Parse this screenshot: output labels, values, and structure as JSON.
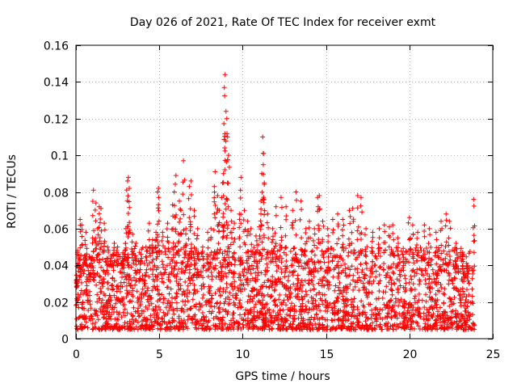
{
  "chart_data": {
    "type": "scatter",
    "title": "Day 026 of 2021, Rate Of TEC Index for receiver exmt",
    "xlabel": "GPS time / hours",
    "ylabel": "ROTI / TECUs",
    "xlim": [
      0,
      25
    ],
    "ylim": [
      0,
      0.16
    ],
    "xticks": [
      0,
      5,
      10,
      15,
      20,
      25
    ],
    "xtick_labels": [
      "0",
      "5",
      "10",
      "15",
      "20",
      "25"
    ],
    "yticks": [
      0,
      0.02,
      0.04,
      0.06,
      0.08,
      0.1,
      0.12,
      0.14,
      0.16
    ],
    "ytick_labels": [
      "0",
      "0.02",
      "0.04",
      "0.06",
      "0.08",
      "0.1",
      "0.12",
      "0.14",
      "0.16"
    ],
    "grid": true,
    "marker": "+",
    "color": "#ff0000",
    "data_extent": {
      "x_min": 0.0,
      "x_max": 23.9,
      "typical_y_min": 0.005,
      "typical_y_max": 0.05
    },
    "series": [
      {
        "name": "ROTI",
        "points": [
          [
            0.05,
            0.03
          ],
          [
            0.1,
            0.048
          ],
          [
            0.2,
            0.04
          ],
          [
            0.25,
            0.065
          ],
          [
            0.35,
            0.062
          ],
          [
            0.5,
            0.045
          ],
          [
            0.6,
            0.058
          ],
          [
            0.8,
            0.035
          ],
          [
            1.0,
            0.055
          ],
          [
            1.05,
            0.081
          ],
          [
            1.2,
            0.074
          ],
          [
            1.3,
            0.06
          ],
          [
            1.4,
            0.072
          ],
          [
            1.5,
            0.071
          ],
          [
            1.7,
            0.063
          ],
          [
            1.9,
            0.05
          ],
          [
            2.1,
            0.045
          ],
          [
            2.3,
            0.052
          ],
          [
            2.5,
            0.05
          ],
          [
            2.8,
            0.044
          ],
          [
            3.0,
            0.06
          ],
          [
            3.1,
            0.086
          ],
          [
            3.15,
            0.088
          ],
          [
            3.2,
            0.082
          ],
          [
            3.4,
            0.057
          ],
          [
            3.6,
            0.052
          ],
          [
            3.9,
            0.046
          ],
          [
            4.2,
            0.05
          ],
          [
            4.4,
            0.063
          ],
          [
            4.6,
            0.054
          ],
          [
            4.8,
            0.058
          ],
          [
            4.9,
            0.08
          ],
          [
            4.95,
            0.082
          ],
          [
            5.2,
            0.058
          ],
          [
            5.5,
            0.063
          ],
          [
            5.8,
            0.073
          ],
          [
            5.9,
            0.08
          ],
          [
            6.0,
            0.089
          ],
          [
            6.2,
            0.075
          ],
          [
            6.3,
            0.07
          ],
          [
            6.45,
            0.097
          ],
          [
            6.6,
            0.06
          ],
          [
            6.8,
            0.083
          ],
          [
            6.9,
            0.086
          ],
          [
            7.1,
            0.07
          ],
          [
            7.3,
            0.06
          ],
          [
            7.6,
            0.05
          ],
          [
            7.9,
            0.058
          ],
          [
            8.1,
            0.06
          ],
          [
            8.3,
            0.083
          ],
          [
            8.35,
            0.091
          ],
          [
            8.5,
            0.078
          ],
          [
            8.6,
            0.07
          ],
          [
            8.8,
            0.085
          ],
          [
            8.85,
            0.09
          ],
          [
            8.9,
            0.137
          ],
          [
            8.95,
            0.144
          ],
          [
            9.0,
            0.124
          ],
          [
            9.05,
            0.12
          ],
          [
            9.1,
            0.11
          ],
          [
            9.15,
            0.1
          ],
          [
            9.3,
            0.07
          ],
          [
            9.5,
            0.063
          ],
          [
            9.8,
            0.068
          ],
          [
            9.9,
            0.088
          ],
          [
            10.1,
            0.07
          ],
          [
            10.3,
            0.064
          ],
          [
            10.5,
            0.06
          ],
          [
            10.8,
            0.056
          ],
          [
            11.0,
            0.061
          ],
          [
            11.1,
            0.075
          ],
          [
            11.15,
            0.09
          ],
          [
            11.2,
            0.11
          ],
          [
            11.25,
            0.101
          ],
          [
            11.3,
            0.085
          ],
          [
            11.5,
            0.068
          ],
          [
            11.8,
            0.06
          ],
          [
            12.0,
            0.072
          ],
          [
            12.3,
            0.077
          ],
          [
            12.6,
            0.072
          ],
          [
            13.0,
            0.07
          ],
          [
            13.2,
            0.08
          ],
          [
            13.5,
            0.075
          ],
          [
            13.8,
            0.06
          ],
          [
            14.0,
            0.064
          ],
          [
            14.3,
            0.06
          ],
          [
            14.5,
            0.077
          ],
          [
            14.6,
            0.078
          ],
          [
            14.8,
            0.064
          ],
          [
            15.1,
            0.06
          ],
          [
            15.4,
            0.065
          ],
          [
            15.7,
            0.068
          ],
          [
            16.0,
            0.065
          ],
          [
            16.4,
            0.07
          ],
          [
            16.6,
            0.071
          ],
          [
            16.9,
            0.078
          ],
          [
            17.1,
            0.077
          ],
          [
            17.4,
            0.06
          ],
          [
            17.8,
            0.058
          ],
          [
            18.2,
            0.06
          ],
          [
            18.5,
            0.062
          ],
          [
            18.8,
            0.061
          ],
          [
            19.0,
            0.062
          ],
          [
            19.3,
            0.055
          ],
          [
            19.6,
            0.046
          ],
          [
            20.0,
            0.066
          ],
          [
            20.2,
            0.062
          ],
          [
            20.5,
            0.058
          ],
          [
            20.9,
            0.062
          ],
          [
            21.2,
            0.06
          ],
          [
            21.6,
            0.058
          ],
          [
            21.9,
            0.064
          ],
          [
            22.2,
            0.068
          ],
          [
            22.4,
            0.064
          ],
          [
            22.8,
            0.052
          ],
          [
            23.2,
            0.045
          ],
          [
            23.5,
            0.04
          ],
          [
            23.85,
            0.076
          ]
        ]
      }
    ]
  }
}
